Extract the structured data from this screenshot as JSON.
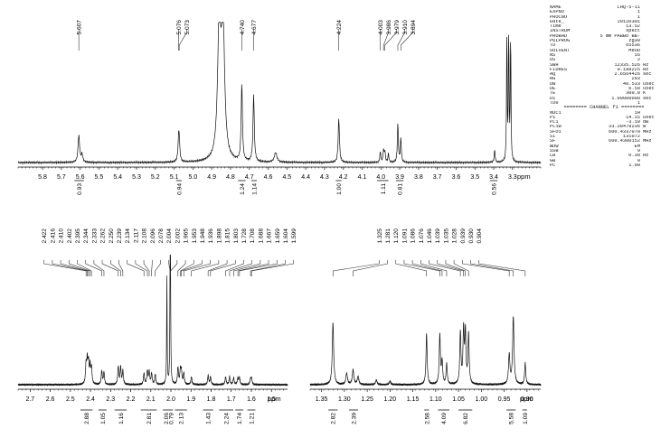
{
  "params_top": [
    {
      "k": "NAME",
      "v": "LHQ-5-11",
      "u": ""
    },
    {
      "k": "EXPNO",
      "v": "1",
      "u": ""
    },
    {
      "k": "PROCNO",
      "v": "1",
      "u": ""
    },
    {
      "k": "Date_",
      "v": "20120301",
      "u": ""
    },
    {
      "k": "Time",
      "v": "13.52",
      "u": ""
    },
    {
      "k": "INSTRUM",
      "v": "spect",
      "u": ""
    },
    {
      "k": "PROBHD",
      "v": "5 mm PABBO BB-",
      "u": ""
    },
    {
      "k": "PULPROG",
      "v": "zg30",
      "u": ""
    },
    {
      "k": "TD",
      "v": "65536",
      "u": ""
    },
    {
      "k": "SOLVENT",
      "v": "MeOD",
      "u": ""
    },
    {
      "k": "NS",
      "v": "16",
      "u": ""
    },
    {
      "k": "DS",
      "v": "2",
      "u": ""
    },
    {
      "k": "SWH",
      "v": "12335.526",
      "u": "Hz"
    },
    {
      "k": "FIDRES",
      "v": "0.188225",
      "u": "Hz"
    },
    {
      "k": "AQ",
      "v": "2.6564426",
      "u": "sec"
    },
    {
      "k": "RG",
      "v": "203",
      "u": ""
    },
    {
      "k": "DW",
      "v": "40.533",
      "u": "usec"
    },
    {
      "k": "DE",
      "v": "6.50",
      "u": "usec"
    },
    {
      "k": "TE",
      "v": "300.0",
      "u": "K"
    },
    {
      "k": "D1",
      "v": "1.00000000",
      "u": "sec"
    },
    {
      "k": "TD0",
      "v": "1",
      "u": ""
    }
  ],
  "channel_label": "======== CHANNEL f1 ========",
  "params_bottom": [
    {
      "k": "NUC1",
      "v": "1H",
      "u": ""
    },
    {
      "k": "P1",
      "v": "14.15",
      "u": "usec"
    },
    {
      "k": "PL1",
      "v": "-3.10",
      "u": "dB"
    },
    {
      "k": "PL1W",
      "v": "33.28479236",
      "u": "W"
    },
    {
      "k": "SFO1",
      "v": "600.4337079",
      "u": "MHz"
    },
    {
      "k": "SI",
      "v": "131072",
      "u": ""
    },
    {
      "k": "SF",
      "v": "600.4300152",
      "u": "MHz"
    },
    {
      "k": "WDW",
      "v": "EM",
      "u": ""
    },
    {
      "k": "SSB",
      "v": "0",
      "u": ""
    },
    {
      "k": "LB",
      "v": "0.30",
      "u": "Hz"
    },
    {
      "k": "GB",
      "v": "0",
      "u": ""
    },
    {
      "k": "PC",
      "v": "1.00",
      "u": ""
    }
  ],
  "chart_data": [
    {
      "type": "line",
      "x_unit": "ppm",
      "xlim": [
        5.93,
        3.15
      ],
      "ticks": [
        "5.8",
        "5.7",
        "5.6",
        "5.5",
        "5.4",
        "5.3",
        "5.2",
        "5.1",
        "5.0",
        "4.9",
        "4.8",
        "4.7",
        "4.6",
        "4.5",
        "4.4",
        "4.3",
        "4.2",
        "4.1",
        "4.0",
        "3.9",
        "3.8",
        "3.7",
        "3.6",
        "3.5",
        "3.4",
        "3.3"
      ],
      "tick_values": [
        5.8,
        5.7,
        5.6,
        5.5,
        5.4,
        5.3,
        5.2,
        5.1,
        5.0,
        4.9,
        4.8,
        4.7,
        4.6,
        4.5,
        4.4,
        4.3,
        4.2,
        4.1,
        4.0,
        3.9,
        3.8,
        3.7,
        3.6,
        3.5,
        3.4,
        3.3
      ],
      "peak_labels": [
        "5.607",
        "5.076",
        "5.073",
        "4.740",
        "4.677",
        "4.224",
        "4.003",
        "3.986",
        "3.979",
        "3.910",
        "3.894"
      ],
      "peak_values": [
        5.607,
        5.076,
        5.073,
        4.74,
        4.677,
        4.224,
        4.003,
        3.986,
        3.979,
        3.91,
        3.894
      ],
      "integrals": [
        {
          "label": "0.93",
          "from": 5.63,
          "to": 5.58
        },
        {
          "label": "0.94",
          "from": 5.09,
          "to": 5.06
        },
        {
          "label": "1.24",
          "from": 4.76,
          "to": 4.72
        },
        {
          "label": "1.14",
          "from": 4.69,
          "to": 4.66
        },
        {
          "label": "1.00",
          "from": 4.24,
          "to": 4.21
        },
        {
          "label": "1.11",
          "from": 4.02,
          "to": 3.96
        },
        {
          "label": "0.81",
          "from": 3.92,
          "to": 3.88
        },
        {
          "label": "0.56",
          "from": 3.42,
          "to": 3.38
        }
      ],
      "peaks": [
        {
          "x": 5.607,
          "h": 0.22,
          "w": 0.005
        },
        {
          "x": 5.59,
          "h": 0.06,
          "w": 0.005
        },
        {
          "x": 5.076,
          "h": 0.16,
          "w": 0.004
        },
        {
          "x": 5.073,
          "h": 0.14,
          "w": 0.004
        },
        {
          "x": 4.86,
          "h": 1.1,
          "w": 0.01
        },
        {
          "x": 4.84,
          "h": 1.1,
          "w": 0.01
        },
        {
          "x": 4.74,
          "h": 0.63,
          "w": 0.004
        },
        {
          "x": 4.677,
          "h": 0.55,
          "w": 0.004
        },
        {
          "x": 4.56,
          "h": 0.08,
          "w": 0.008
        },
        {
          "x": 4.224,
          "h": 0.36,
          "w": 0.004
        },
        {
          "x": 4.003,
          "h": 0.09,
          "w": 0.003
        },
        {
          "x": 3.986,
          "h": 0.1,
          "w": 0.003
        },
        {
          "x": 3.979,
          "h": 0.09,
          "w": 0.003
        },
        {
          "x": 3.96,
          "h": 0.07,
          "w": 0.003
        },
        {
          "x": 3.91,
          "h": 0.32,
          "w": 0.003
        },
        {
          "x": 3.894,
          "h": 0.2,
          "w": 0.003
        },
        {
          "x": 3.33,
          "h": 1.1,
          "w": 0.002
        },
        {
          "x": 3.32,
          "h": 1.1,
          "w": 0.002
        },
        {
          "x": 3.31,
          "h": 1.1,
          "w": 0.002
        },
        {
          "x": 3.395,
          "h": 0.1,
          "w": 0.003
        }
      ]
    },
    {
      "type": "line",
      "x_unit": "ppm",
      "xlim": [
        2.76,
        1.42
      ],
      "ticks": [
        "2.7",
        "2.6",
        "2.5",
        "2.4",
        "2.3",
        "2.2",
        "2.1",
        "2.0",
        "1.9",
        "1.8",
        "1.7",
        "1.6",
        "1.5"
      ],
      "tick_values": [
        2.7,
        2.6,
        2.5,
        2.4,
        2.3,
        2.2,
        2.1,
        2.0,
        1.9,
        1.8,
        1.7,
        1.6,
        1.5
      ],
      "peak_labels": [
        "2.422",
        "2.416",
        "2.410",
        "2.402",
        "2.395",
        "2.344",
        "2.333",
        "2.262",
        "2.250",
        "2.239",
        "2.134",
        "2.117",
        "2.108",
        "2.096",
        "2.078",
        "2.004",
        "2.002",
        "1.965",
        "1.953",
        "1.948",
        "1.936",
        "1.898",
        "1.815",
        "1.803",
        "1.728",
        "1.708",
        "1.688",
        "1.667",
        "1.659",
        "1.604",
        "1.599"
      ],
      "peak_values": [
        2.422,
        2.416,
        2.41,
        2.402,
        2.395,
        2.344,
        2.333,
        2.262,
        2.25,
        2.239,
        2.134,
        2.117,
        2.108,
        2.096,
        2.078,
        2.004,
        2.002,
        1.965,
        1.953,
        1.948,
        1.936,
        1.898,
        1.815,
        1.803,
        1.728,
        1.708,
        1.688,
        1.667,
        1.659,
        1.604,
        1.599
      ],
      "integrals": [
        {
          "label": "2.88",
          "from": 2.45,
          "to": 2.39
        },
        {
          "label": "1.05",
          "from": 2.36,
          "to": 2.32
        },
        {
          "label": "1.16",
          "from": 2.28,
          "to": 2.22
        },
        {
          "label": "2.81",
          "from": 2.15,
          "to": 2.07
        },
        {
          "label": "2.06",
          "from": 2.04,
          "to": 2.01
        },
        {
          "label": "0.79",
          "from": 2.01,
          "to": 1.99
        },
        {
          "label": "2.13",
          "from": 1.98,
          "to": 1.92
        },
        {
          "label": "1.43",
          "from": 1.84,
          "to": 1.79
        },
        {
          "label": "2.24",
          "from": 1.76,
          "to": 1.69
        },
        {
          "label": "1.74",
          "from": 1.68,
          "to": 1.64
        },
        {
          "label": "1.21",
          "from": 1.62,
          "to": 1.58
        }
      ],
      "peaks": [
        {
          "x": 2.422,
          "h": 0.17,
          "w": 0.003
        },
        {
          "x": 2.416,
          "h": 0.2,
          "w": 0.003
        },
        {
          "x": 2.41,
          "h": 0.18,
          "w": 0.003
        },
        {
          "x": 2.402,
          "h": 0.16,
          "w": 0.003
        },
        {
          "x": 2.395,
          "h": 0.14,
          "w": 0.003
        },
        {
          "x": 2.344,
          "h": 0.12,
          "w": 0.003
        },
        {
          "x": 2.333,
          "h": 0.11,
          "w": 0.003
        },
        {
          "x": 2.262,
          "h": 0.16,
          "w": 0.003
        },
        {
          "x": 2.25,
          "h": 0.15,
          "w": 0.003
        },
        {
          "x": 2.239,
          "h": 0.12,
          "w": 0.003
        },
        {
          "x": 2.134,
          "h": 0.1,
          "w": 0.003
        },
        {
          "x": 2.117,
          "h": 0.12,
          "w": 0.003
        },
        {
          "x": 2.108,
          "h": 0.11,
          "w": 0.003
        },
        {
          "x": 2.096,
          "h": 0.1,
          "w": 0.003
        },
        {
          "x": 2.078,
          "h": 0.09,
          "w": 0.003
        },
        {
          "x": 2.004,
          "h": 0.95,
          "w": 0.0015
        },
        {
          "x": 2.002,
          "h": 0.8,
          "w": 0.0015
        },
        {
          "x": 2.02,
          "h": 0.95,
          "w": 0.0015
        },
        {
          "x": 1.965,
          "h": 0.15,
          "w": 0.003
        },
        {
          "x": 1.953,
          "h": 0.12,
          "w": 0.003
        },
        {
          "x": 1.948,
          "h": 0.11,
          "w": 0.003
        },
        {
          "x": 1.936,
          "h": 0.1,
          "w": 0.003
        },
        {
          "x": 1.898,
          "h": 0.07,
          "w": 0.003
        },
        {
          "x": 1.815,
          "h": 0.08,
          "w": 0.003
        },
        {
          "x": 1.803,
          "h": 0.07,
          "w": 0.003
        },
        {
          "x": 1.728,
          "h": 0.07,
          "w": 0.003
        },
        {
          "x": 1.708,
          "h": 0.07,
          "w": 0.003
        },
        {
          "x": 1.688,
          "h": 0.06,
          "w": 0.003
        },
        {
          "x": 1.667,
          "h": 0.06,
          "w": 0.003
        },
        {
          "x": 1.659,
          "h": 0.06,
          "w": 0.003
        },
        {
          "x": 1.604,
          "h": 0.05,
          "w": 0.003
        },
        {
          "x": 1.599,
          "h": 0.05,
          "w": 0.003
        }
      ]
    },
    {
      "type": "line",
      "x_unit": "ppm",
      "xlim": [
        1.375,
        0.87
      ],
      "ticks": [
        "1.35",
        "1.30",
        "1.25",
        "1.20",
        "1.15",
        "1.10",
        "1.05",
        "1.00",
        "0.95",
        "0.90"
      ],
      "tick_values": [
        1.35,
        1.3,
        1.25,
        1.2,
        1.15,
        1.1,
        1.05,
        1.0,
        0.95,
        0.9
      ],
      "peak_labels": [
        "1.325",
        "1.281",
        "1.120",
        "1.091",
        "1.086",
        "1.076",
        "1.046",
        "1.039",
        "1.035",
        "1.028",
        "0.939",
        "0.930",
        "0.904"
      ],
      "peak_values": [
        1.325,
        1.281,
        1.12,
        1.091,
        1.086,
        1.076,
        1.046,
        1.039,
        1.035,
        1.028,
        0.939,
        0.93,
        0.904
      ],
      "integrals": [
        {
          "label": "2.82",
          "from": 1.335,
          "to": 1.315
        },
        {
          "label": "2.39",
          "from": 1.29,
          "to": 1.27
        },
        {
          "label": "2.58",
          "from": 1.125,
          "to": 1.115
        },
        {
          "label": "4.09",
          "from": 1.095,
          "to": 1.07
        },
        {
          "label": "6.82",
          "from": 1.05,
          "to": 1.02
        },
        {
          "label": "5.58",
          "from": 0.945,
          "to": 0.925
        },
        {
          "label": "1.09",
          "from": 0.91,
          "to": 0.9
        }
      ],
      "peaks": [
        {
          "x": 1.325,
          "h": 0.55,
          "w": 0.0018
        },
        {
          "x": 1.295,
          "h": 0.1,
          "w": 0.002
        },
        {
          "x": 1.281,
          "h": 0.13,
          "w": 0.002
        },
        {
          "x": 1.27,
          "h": 0.07,
          "w": 0.002
        },
        {
          "x": 1.23,
          "h": 0.04,
          "w": 0.002
        },
        {
          "x": 1.2,
          "h": 0.03,
          "w": 0.002
        },
        {
          "x": 1.12,
          "h": 0.45,
          "w": 0.0015
        },
        {
          "x": 1.091,
          "h": 0.44,
          "w": 0.0015
        },
        {
          "x": 1.086,
          "h": 0.2,
          "w": 0.0015
        },
        {
          "x": 1.076,
          "h": 0.18,
          "w": 0.0015
        },
        {
          "x": 1.046,
          "h": 0.46,
          "w": 0.0015
        },
        {
          "x": 1.039,
          "h": 0.47,
          "w": 0.0015
        },
        {
          "x": 1.035,
          "h": 0.45,
          "w": 0.0015
        },
        {
          "x": 1.028,
          "h": 0.44,
          "w": 0.0015
        },
        {
          "x": 0.939,
          "h": 0.26,
          "w": 0.0018
        },
        {
          "x": 0.93,
          "h": 0.6,
          "w": 0.0018
        },
        {
          "x": 0.904,
          "h": 0.19,
          "w": 0.0015
        }
      ]
    }
  ]
}
